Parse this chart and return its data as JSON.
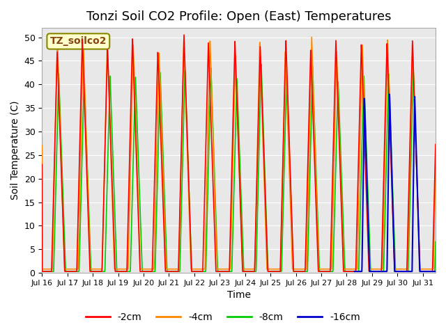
{
  "title": "Tonzi Soil CO2 Profile: Open (East) Temperatures",
  "xlabel": "Time",
  "ylabel": "Soil Temperature (C)",
  "xlim_days": [
    0,
    15.5
  ],
  "ylim": [
    0,
    52
  ],
  "yticks": [
    0,
    5,
    10,
    15,
    20,
    25,
    30,
    35,
    40,
    45,
    50
  ],
  "xtick_labels": [
    "Jul 16",
    "Jul 17",
    "Jul 18",
    "Jul 19",
    "Jul 20",
    "Jul 21",
    "Jul 22",
    "Jul 23",
    "Jul 24",
    "Jul 25",
    "Jul 26",
    "Jul 27",
    "Jul 28",
    "Jul 29",
    "Jul 30",
    "Jul 31"
  ],
  "colors": {
    "-2cm": "#ff0000",
    "-4cm": "#ff8800",
    "-8cm": "#00cc00",
    "-16cm": "#0000cc"
  },
  "legend_title": "TZ_soilco2",
  "background_color": "#e8e8e8",
  "title_fontsize": 13,
  "axis_fontsize": 10,
  "legend_fontsize": 10
}
